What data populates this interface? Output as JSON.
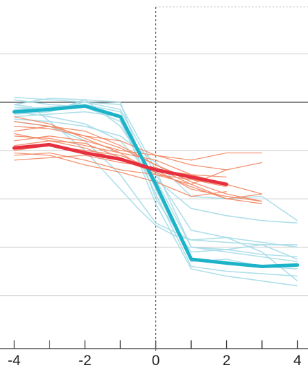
{
  "chart_data": {
    "type": "line",
    "title": "",
    "xlabel": "",
    "ylabel": "",
    "xlim": [
      -4.4,
      4.3
    ],
    "ylim": [
      0,
      7
    ],
    "x_ticks_major": [
      -4,
      -2,
      0,
      2,
      4
    ],
    "x_tick_labels": [
      "-4",
      "-2",
      "0",
      "2",
      "4"
    ],
    "x_ticks_minor": [
      -3,
      -1,
      1,
      3
    ],
    "h_gridlines": [
      1,
      2,
      3,
      4,
      5,
      6
    ],
    "reference_line": {
      "y": 5,
      "color": "#333333"
    },
    "vertical_marker": {
      "x": 0,
      "style": "dashed"
    },
    "legend": "none",
    "colors": {
      "blue_mean": "#1cb3c9",
      "blue_thin": "#a6dbe8",
      "red_mean": "#e63040",
      "red_thin": "#f2855f",
      "grid": "#cccccc",
      "axis": "#333333"
    },
    "mean_series": [
      {
        "color": "blue_mean",
        "x": [
          -4,
          -3,
          -2,
          -1,
          0,
          1,
          2,
          3,
          4
        ],
        "y": [
          4.8,
          4.85,
          4.92,
          4.7,
          3.3,
          1.75,
          1.67,
          1.6,
          1.63
        ]
      },
      {
        "color": "red_mean",
        "x": [
          -4,
          -3,
          -2,
          -1,
          0,
          1,
          2
        ],
        "y": [
          4.05,
          4.12,
          3.95,
          3.82,
          3.6,
          3.45,
          3.3
        ]
      }
    ],
    "thin_series_blue": [
      {
        "x": [
          -4,
          -3,
          -2,
          -1,
          0,
          1,
          2,
          3,
          4
        ],
        "y": [
          5.1,
          5.05,
          5.0,
          4.95,
          3.6,
          2.0,
          1.95,
          1.85,
          1.8
        ]
      },
      {
        "x": [
          -4,
          -3,
          -2,
          -1,
          0,
          1,
          2,
          3,
          4
        ],
        "y": [
          4.95,
          5.08,
          5.05,
          5.0,
          3.0,
          1.9,
          1.95,
          2.05,
          1.75
        ]
      },
      {
        "x": [
          -4,
          -3,
          -2,
          -1,
          0,
          1,
          2,
          3,
          4
        ],
        "y": [
          4.85,
          4.9,
          4.95,
          4.8,
          3.2,
          1.7,
          1.75,
          1.6,
          1.55
        ]
      },
      {
        "x": [
          -4,
          -3,
          -2,
          -1,
          0,
          1,
          2,
          3,
          4
        ],
        "y": [
          4.75,
          4.8,
          5.05,
          4.5,
          3.4,
          2.0,
          1.9,
          1.8,
          1.7
        ]
      },
      {
        "x": [
          -4,
          -3,
          -2,
          -1,
          0,
          1,
          2,
          3,
          4
        ],
        "y": [
          5.05,
          4.95,
          4.9,
          4.6,
          3.1,
          1.6,
          1.5,
          1.45,
          1.4
        ]
      },
      {
        "x": [
          -4,
          -3,
          -2,
          -1,
          0,
          1,
          2,
          3,
          4
        ],
        "y": [
          4.9,
          4.85,
          5.0,
          4.85,
          3.5,
          2.35,
          2.2,
          1.9,
          1.3
        ]
      },
      {
        "x": [
          -4,
          -3,
          -2,
          -1,
          0,
          1,
          2,
          3,
          4
        ],
        "y": [
          4.7,
          4.75,
          4.8,
          4.7,
          2.9,
          1.55,
          1.4,
          1.3,
          1.2
        ]
      },
      {
        "x": [
          -4,
          -3.5,
          -3,
          -2.5,
          -2,
          -1.5,
          -1,
          -0.5,
          0,
          0.5,
          1,
          2,
          3,
          4
        ],
        "y": [
          4.95,
          4.9,
          4.6,
          4.3,
          4.0,
          3.6,
          3.2,
          2.8,
          2.45,
          2.25,
          2.15,
          2.2,
          2.1,
          2.0
        ]
      },
      {
        "x": [
          -4,
          -3,
          -2,
          -1,
          -0.5,
          0,
          1,
          2,
          3,
          4
        ],
        "y": [
          4.6,
          4.5,
          4.2,
          3.5,
          3.0,
          2.5,
          2.15,
          2.1,
          2.05,
          2.05
        ]
      },
      {
        "x": [
          -4,
          -3,
          -2,
          -1,
          0,
          1,
          2,
          3,
          4
        ],
        "y": [
          4.8,
          4.7,
          4.55,
          4.2,
          3.4,
          2.8,
          2.65,
          2.55,
          2.5
        ]
      },
      {
        "x": [
          -4,
          -3,
          -2,
          -1,
          0,
          1,
          2,
          3,
          4
        ],
        "y": [
          4.65,
          4.6,
          4.5,
          4.3,
          3.75,
          3.05,
          3.0,
          3.05,
          2.55
        ]
      }
    ],
    "thin_series_red": [
      {
        "x": [
          -4,
          -3,
          -2,
          -1,
          0,
          1,
          2,
          3
        ],
        "y": [
          4.2,
          4.3,
          4.2,
          4.0,
          3.9,
          3.8,
          3.95,
          3.95
        ]
      },
      {
        "x": [
          -4,
          -3,
          -2,
          -1,
          0,
          1,
          2
        ],
        "y": [
          4.4,
          4.5,
          4.3,
          4.2,
          3.9,
          3.7,
          3.6
        ]
      },
      {
        "x": [
          -4,
          -3,
          -2,
          -1,
          0,
          1,
          2,
          3
        ],
        "y": [
          3.9,
          3.95,
          3.8,
          3.6,
          3.5,
          3.4,
          3.3,
          3.1
        ]
      },
      {
        "x": [
          -4,
          -3,
          -2,
          -1,
          0,
          1,
          2,
          3
        ],
        "y": [
          4.6,
          4.5,
          4.4,
          4.1,
          3.7,
          3.35,
          3.1,
          2.95
        ]
      },
      {
        "x": [
          -4,
          -3,
          -2,
          -1,
          0,
          1,
          2,
          3
        ],
        "y": [
          3.8,
          3.85,
          3.9,
          3.75,
          3.65,
          3.3,
          3.0,
          2.9
        ]
      },
      {
        "x": [
          -4,
          -3,
          -2,
          -1,
          0,
          1,
          2
        ],
        "y": [
          4.3,
          4.25,
          4.1,
          3.95,
          3.8,
          3.5,
          3.3
        ]
      },
      {
        "x": [
          -4,
          -3,
          -2,
          -1,
          0,
          1,
          2,
          3
        ],
        "y": [
          4.0,
          4.1,
          4.0,
          3.9,
          3.6,
          3.2,
          3.05,
          2.95
        ]
      },
      {
        "x": [
          -4,
          -3,
          -2,
          -1,
          0,
          1,
          2
        ],
        "y": [
          4.5,
          4.45,
          4.3,
          4.05,
          3.7,
          3.4,
          3.25
        ]
      },
      {
        "x": [
          -4,
          -3,
          -2,
          -1,
          0,
          1,
          2
        ],
        "y": [
          3.95,
          3.9,
          3.7,
          3.55,
          3.35,
          3.05,
          3.15
        ]
      },
      {
        "x": [
          -4,
          -3,
          -2,
          -1,
          0,
          1,
          2,
          3
        ],
        "y": [
          4.7,
          4.55,
          4.25,
          3.95,
          3.5,
          3.3,
          3.6,
          3.75
        ]
      },
      {
        "x": [
          -4,
          -3,
          -2,
          -1,
          0,
          1,
          2
        ],
        "y": [
          4.1,
          4.2,
          4.15,
          3.85,
          3.6,
          3.5,
          3.45
        ]
      },
      {
        "x": [
          -4,
          -3,
          -2,
          -1,
          0,
          1,
          2,
          3
        ],
        "y": [
          4.35,
          4.2,
          4.05,
          3.8,
          3.55,
          3.25,
          3.0,
          3.1
        ]
      }
    ]
  }
}
